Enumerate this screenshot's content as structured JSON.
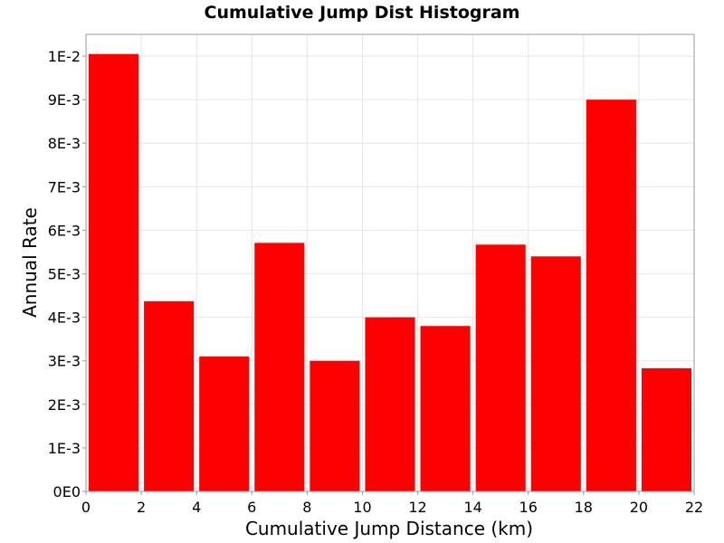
{
  "chart_data": {
    "type": "bar",
    "title": "Cumulative Jump Dist Histogram",
    "xlabel": "Cumulative Jump Distance (km)",
    "ylabel": "Annual Rate",
    "xlim": [
      0,
      22
    ],
    "ylim": [
      0,
      0.0105
    ],
    "bin_width": 2,
    "bar_color": "#ff0000",
    "grid": true,
    "x_ticks": [
      "0",
      "2",
      "4",
      "6",
      "8",
      "10",
      "12",
      "14",
      "16",
      "18",
      "20",
      "22"
    ],
    "y_ticks": [
      "0E0",
      "1E-3",
      "2E-3",
      "3E-3",
      "4E-3",
      "5E-3",
      "6E-3",
      "7E-3",
      "8E-3",
      "9E-3",
      "1E-2"
    ],
    "bins": [
      {
        "x_start": 0,
        "x_end": 2,
        "value": 0.01005
      },
      {
        "x_start": 2,
        "x_end": 4,
        "value": 0.00437
      },
      {
        "x_start": 4,
        "x_end": 6,
        "value": 0.0031
      },
      {
        "x_start": 6,
        "x_end": 8,
        "value": 0.00571
      },
      {
        "x_start": 8,
        "x_end": 10,
        "value": 0.003
      },
      {
        "x_start": 10,
        "x_end": 12,
        "value": 0.004
      },
      {
        "x_start": 12,
        "x_end": 14,
        "value": 0.0038
      },
      {
        "x_start": 14,
        "x_end": 16,
        "value": 0.00567
      },
      {
        "x_start": 16,
        "x_end": 18,
        "value": 0.0054
      },
      {
        "x_start": 18,
        "x_end": 20,
        "value": 0.009
      },
      {
        "x_start": 20,
        "x_end": 22,
        "value": 0.00283
      }
    ]
  }
}
